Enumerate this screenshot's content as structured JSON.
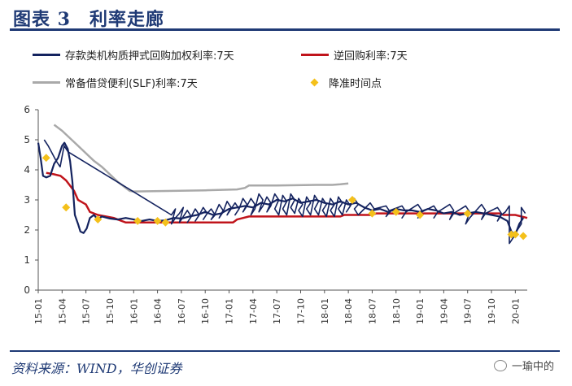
{
  "header": {
    "title": "图表 3　利率走廊"
  },
  "footer": {
    "source": "资料来源：WIND，华创证券",
    "brand": "一瑜中的"
  },
  "chart_data": {
    "type": "line",
    "title": "利率走廊",
    "xlabel": "",
    "ylabel": "",
    "ylim": [
      0,
      6
    ],
    "yticks": [
      "0",
      "1",
      "2",
      "3",
      "4",
      "5",
      "6"
    ],
    "xticks": [
      "15-01",
      "15-04",
      "15-07",
      "15-10",
      "16-01",
      "16-04",
      "16-07",
      "16-10",
      "17-01",
      "17-04",
      "17-07",
      "17-10",
      "18-01",
      "18-04",
      "18-07",
      "18-10",
      "19-01",
      "19-04",
      "19-07",
      "19-10",
      "20-01"
    ],
    "x_range_months": [
      0,
      61.5
    ],
    "grid": false,
    "legend_position": "top",
    "series": [
      {
        "name": "存款类机构质押式回购加权利率:7天",
        "color": "#14235f",
        "points": [
          [
            0,
            4.9
          ],
          [
            0.3,
            4.4
          ],
          [
            0.6,
            3.8
          ],
          [
            1,
            3.75
          ],
          [
            1.5,
            3.8
          ],
          [
            2,
            4.2
          ],
          [
            2.5,
            4.4
          ],
          [
            3,
            4.8
          ],
          [
            3.3,
            4.9
          ],
          [
            3.7,
            4.7
          ],
          [
            4,
            4.3
          ],
          [
            4.3,
            3.6
          ],
          [
            4.6,
            2.5
          ],
          [
            5,
            2.2
          ],
          [
            5.3,
            1.95
          ],
          [
            5.7,
            1.9
          ],
          [
            6.1,
            2.05
          ],
          [
            6.5,
            2.4
          ],
          [
            7,
            2.5
          ],
          [
            7.5,
            2.35
          ],
          [
            8,
            2.45
          ],
          [
            9,
            2.38
          ],
          [
            10,
            2.35
          ],
          [
            11,
            2.4
          ],
          [
            12,
            2.35
          ],
          [
            13,
            2.3
          ],
          [
            14,
            2.35
          ],
          [
            15,
            2.3
          ],
          [
            16,
            2.32
          ],
          [
            17,
            2.4
          ],
          [
            18,
            2.38
          ],
          [
            19,
            2.45
          ],
          [
            20,
            2.5
          ],
          [
            21,
            2.6
          ],
          [
            22,
            2.5
          ],
          [
            23,
            2.55
          ],
          [
            24,
            2.7
          ],
          [
            25,
            2.75
          ],
          [
            26,
            2.8
          ],
          [
            27,
            2.75
          ],
          [
            28,
            2.9
          ],
          [
            29,
            2.85
          ],
          [
            30,
            3.0
          ],
          [
            31,
            2.95
          ],
          [
            32,
            3.05
          ],
          [
            33,
            2.9
          ],
          [
            34,
            2.95
          ],
          [
            35,
            3.0
          ],
          [
            36,
            2.9
          ],
          [
            37,
            2.85
          ],
          [
            38,
            2.95
          ],
          [
            39,
            2.85
          ],
          [
            40,
            2.9
          ],
          [
            41,
            2.75
          ],
          [
            42,
            2.65
          ],
          [
            43,
            2.7
          ],
          [
            44,
            2.6
          ],
          [
            45,
            2.7
          ],
          [
            46,
            2.65
          ],
          [
            47,
            2.65
          ],
          [
            48,
            2.6
          ],
          [
            49,
            2.7
          ],
          [
            50,
            2.65
          ],
          [
            51,
            2.55
          ],
          [
            52,
            2.6
          ],
          [
            53,
            2.5
          ],
          [
            54,
            2.55
          ],
          [
            55,
            2.6
          ],
          [
            56,
            2.55
          ],
          [
            57,
            2.5
          ],
          [
            58,
            2.45
          ],
          [
            59,
            2.3
          ],
          [
            59.5,
            1.95
          ],
          [
            60,
            1.85
          ],
          [
            60.5,
            2.2
          ],
          [
            61,
            2.4
          ]
        ],
        "spikes": [
          [
            1,
            5.0
          ],
          [
            2.5,
            4.3
          ],
          [
            3.5,
            4.8
          ],
          [
            17,
            2.5
          ],
          [
            18,
            2.55
          ],
          [
            19,
            2.65
          ],
          [
            20,
            2.7
          ],
          [
            21,
            2.75
          ],
          [
            22,
            2.7
          ],
          [
            23,
            2.85
          ],
          [
            24,
            2.95
          ],
          [
            25,
            2.9
          ],
          [
            26,
            3.05
          ],
          [
            27,
            3.05
          ],
          [
            28,
            3.2
          ],
          [
            29,
            3.1
          ],
          [
            30,
            3.2
          ],
          [
            31,
            3.15
          ],
          [
            32,
            3.2
          ],
          [
            33,
            3.05
          ],
          [
            34,
            3.1
          ],
          [
            35,
            3.15
          ],
          [
            36,
            3.05
          ],
          [
            37,
            3.05
          ],
          [
            38,
            3.1
          ],
          [
            39,
            3.0
          ],
          [
            40,
            3.05
          ],
          [
            42,
            2.9
          ],
          [
            44,
            2.8
          ],
          [
            46,
            2.8
          ],
          [
            48,
            2.85
          ],
          [
            50,
            2.8
          ],
          [
            52,
            2.85
          ],
          [
            54,
            2.8
          ],
          [
            56,
            2.85
          ],
          [
            58,
            2.75
          ],
          [
            59,
            2.6
          ],
          [
            61,
            2.75
          ]
        ],
        "dips": [
          [
            17,
            2.2
          ],
          [
            18,
            2.25
          ],
          [
            19,
            2.25
          ],
          [
            20,
            2.3
          ],
          [
            21,
            2.35
          ],
          [
            22,
            2.35
          ],
          [
            23,
            2.4
          ],
          [
            24,
            2.5
          ],
          [
            25,
            2.5
          ],
          [
            26,
            2.6
          ],
          [
            27,
            2.5
          ],
          [
            28,
            2.6
          ],
          [
            29,
            2.6
          ],
          [
            30,
            2.7
          ],
          [
            31,
            2.7
          ],
          [
            32,
            2.75
          ],
          [
            33,
            2.65
          ],
          [
            34,
            2.7
          ],
          [
            35,
            2.7
          ],
          [
            36,
            2.65
          ],
          [
            37,
            2.65
          ],
          [
            38,
            2.7
          ],
          [
            39,
            2.6
          ],
          [
            40,
            2.7
          ],
          [
            42,
            2.5
          ],
          [
            44,
            2.45
          ],
          [
            46,
            2.4
          ],
          [
            48,
            2.4
          ],
          [
            50,
            2.4
          ],
          [
            52,
            2.35
          ],
          [
            54,
            2.2
          ],
          [
            56,
            2.35
          ],
          [
            58,
            2.3
          ],
          [
            59.5,
            1.55
          ],
          [
            60.5,
            2.0
          ]
        ]
      },
      {
        "name": "逆回购利率:7天",
        "color": "#c0141b",
        "points": [
          [
            1,
            3.9
          ],
          [
            2,
            3.85
          ],
          [
            2.8,
            3.8
          ],
          [
            3.5,
            3.65
          ],
          [
            4.5,
            3.3
          ],
          [
            5,
            3.0
          ],
          [
            6,
            2.85
          ],
          [
            6.5,
            2.6
          ],
          [
            7.5,
            2.5
          ],
          [
            8.5,
            2.45
          ],
          [
            9.5,
            2.4
          ],
          [
            10,
            2.35
          ],
          [
            11,
            2.25
          ],
          [
            15,
            2.25
          ],
          [
            17,
            2.25
          ],
          [
            24.5,
            2.25
          ],
          [
            25,
            2.35
          ],
          [
            26.5,
            2.45
          ],
          [
            38,
            2.45
          ],
          [
            38.5,
            2.5
          ],
          [
            42,
            2.5
          ],
          [
            42.5,
            2.55
          ],
          [
            44,
            2.55
          ],
          [
            46,
            2.55
          ],
          [
            50,
            2.55
          ],
          [
            58,
            2.55
          ],
          [
            58.5,
            2.5
          ],
          [
            60,
            2.5
          ],
          [
            61.5,
            2.4
          ]
        ]
      },
      {
        "name": "常备借贷便利(SLF)利率:7天",
        "color": "#a9a9a9",
        "points": [
          [
            2,
            5.5
          ],
          [
            3,
            5.3
          ],
          [
            5,
            4.8
          ],
          [
            7,
            4.3
          ],
          [
            8,
            4.1
          ],
          [
            9,
            3.85
          ],
          [
            10,
            3.6
          ],
          [
            11,
            3.4
          ],
          [
            11.5,
            3.3
          ],
          [
            12,
            3.28
          ],
          [
            17,
            3.3
          ],
          [
            21,
            3.32
          ],
          [
            25,
            3.35
          ],
          [
            26,
            3.4
          ],
          [
            26.5,
            3.48
          ],
          [
            30,
            3.48
          ],
          [
            35,
            3.5
          ],
          [
            37,
            3.5
          ],
          [
            38,
            3.52
          ],
          [
            39,
            3.55
          ]
        ]
      },
      {
        "name": "降准时间点",
        "color": "#f4c01a",
        "type": "scatter",
        "points": [
          [
            1,
            4.4
          ],
          [
            3.5,
            2.75
          ],
          [
            7.5,
            2.35
          ],
          [
            12.5,
            2.3
          ],
          [
            15,
            2.3
          ],
          [
            16,
            2.25
          ],
          [
            39.5,
            3.0
          ],
          [
            42,
            2.55
          ],
          [
            45,
            2.6
          ],
          [
            48,
            2.5
          ],
          [
            54,
            2.55
          ],
          [
            59.5,
            1.85
          ],
          [
            60,
            1.85
          ],
          [
            61,
            1.8
          ]
        ]
      }
    ]
  }
}
